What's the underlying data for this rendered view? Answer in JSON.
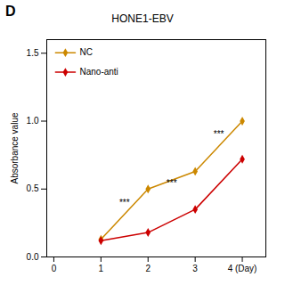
{
  "chart_data": {
    "type": "line",
    "title": "HONE1-EBV",
    "ylabel": "Absorbance value",
    "x": [
      1,
      2,
      3,
      4
    ],
    "series": [
      {
        "name": "NC",
        "color": "#CC8800",
        "marker": "diamond",
        "values": [
          0.13,
          0.5,
          0.63,
          1.0
        ]
      },
      {
        "name": "Nano-anti",
        "color": "#CC0000",
        "marker": "diamond",
        "values": [
          0.12,
          0.18,
          0.35,
          0.72
        ]
      }
    ],
    "xlim": [
      -0.15,
      4.5
    ],
    "xticks": [
      0,
      1,
      2,
      3,
      {
        "value": 4,
        "label": "4 (Day)"
      }
    ],
    "ylim": [
      0.0,
      1.6
    ],
    "yticks": [
      {
        "value": 0,
        "label": "0.0"
      },
      0.5,
      {
        "value": 1,
        "label": "1.0"
      },
      1.5
    ],
    "annotations": [
      {
        "x": 1.5,
        "y": 0.38,
        "text": "***"
      },
      {
        "x": 2.5,
        "y": 0.52,
        "text": "***"
      },
      {
        "x": 3.5,
        "y": 0.88,
        "text": "***"
      },
      {
        "text": "D"
      }
    ],
    "legend": "upper left",
    "grid": false
  }
}
